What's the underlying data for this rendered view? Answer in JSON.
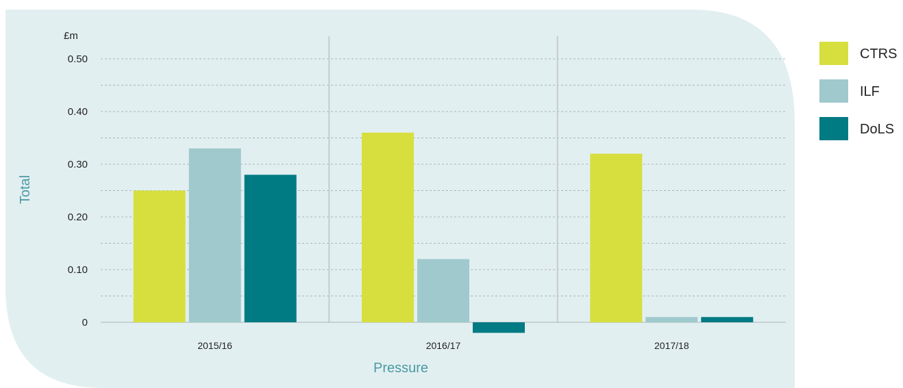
{
  "chart_data": {
    "type": "bar",
    "unit_label": "£m",
    "xlabel": "Pressure",
    "ylabel": "Total",
    "categories": [
      "2015/16",
      "2016/17",
      "2017/18"
    ],
    "series": [
      {
        "name": "CTRS",
        "color": "#d6df3e",
        "values": [
          0.25,
          0.36,
          0.32
        ]
      },
      {
        "name": "ILF",
        "color": "#9fc9cd",
        "values": [
          0.33,
          0.12,
          0.01
        ]
      },
      {
        "name": "DoLS",
        "color": "#007a83",
        "values": [
          0.28,
          -0.02,
          0.01
        ]
      }
    ],
    "ylim": [
      -0.02,
      0.5
    ],
    "yticks": [
      0,
      0.1,
      0.2,
      0.3,
      0.4,
      0.5
    ],
    "ytick_labels": [
      "0",
      "0.10",
      "0.20",
      "0.30",
      "0.40",
      "0.50"
    ],
    "grid": true,
    "legend_position": "right"
  },
  "colors": {
    "background_panel": "#e2eff0",
    "grid": "#a9b6b8",
    "divider": "#c4cccd",
    "axis_title": "#4b9aa4"
  }
}
